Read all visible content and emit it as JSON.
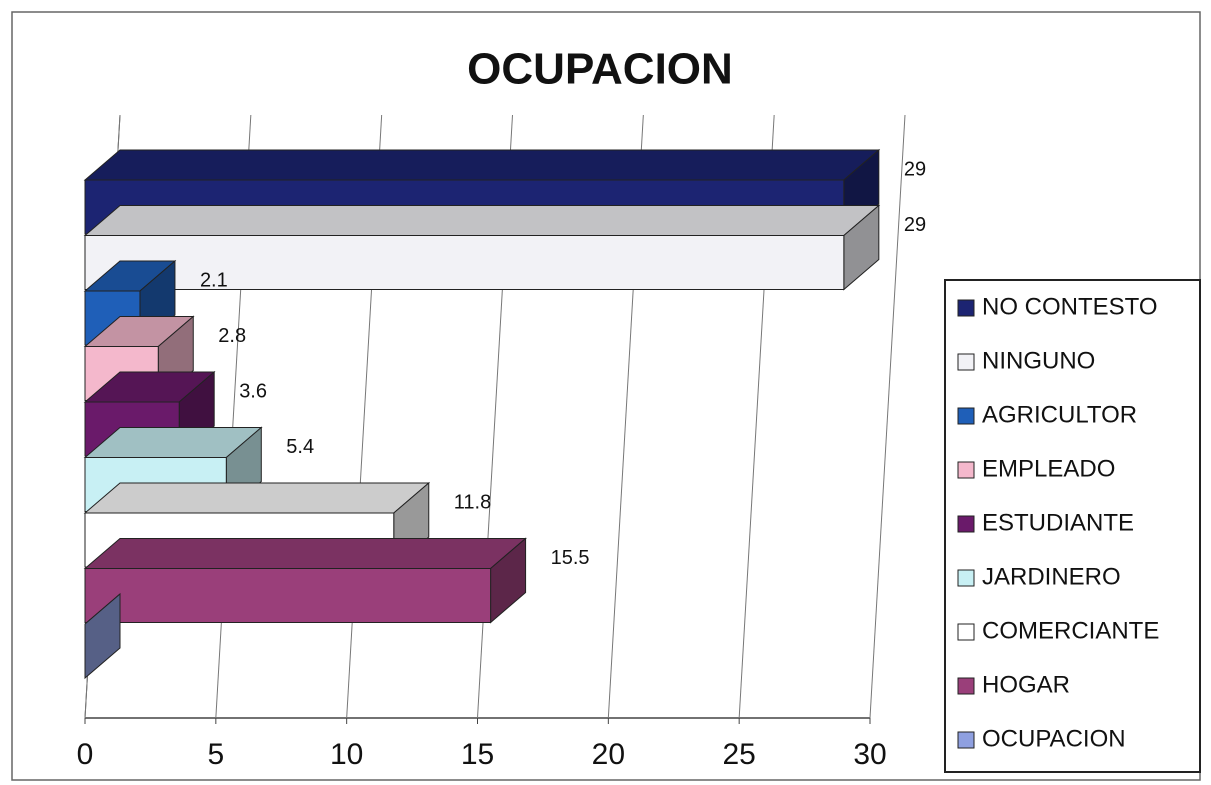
{
  "chart_data": {
    "type": "bar",
    "orientation": "horizontal",
    "title": "OCUPACION",
    "series": [
      {
        "name": "NO CONTESTO",
        "color": "#1c2472",
        "values": [
          29
        ]
      },
      {
        "name": "NINGUNO",
        "color": "#f2f2f6",
        "values": [
          29
        ]
      },
      {
        "name": "AGRICULTOR",
        "color": "#1f5fb8",
        "values": [
          2.1
        ]
      },
      {
        "name": "EMPLEADO",
        "color": "#f4b8cc",
        "values": [
          2.8
        ]
      },
      {
        "name": "ESTUDIANTE",
        "color": "#6a1a6a",
        "values": [
          3.6
        ]
      },
      {
        "name": "JARDINERO",
        "color": "#c8f0f4",
        "values": [
          5.4
        ]
      },
      {
        "name": "COMERCIANTE",
        "color": "#ffffff",
        "values": [
          11.8
        ]
      },
      {
        "name": "HOGAR",
        "color": "#9a3f7a",
        "values": [
          15.5
        ]
      },
      {
        "name": "OCUPACION",
        "color": "#8fa0e0",
        "values": [
          0
        ]
      }
    ],
    "xlim": [
      0,
      30
    ],
    "xticks": [
      0,
      5,
      10,
      15,
      20,
      25,
      30
    ],
    "grid": true,
    "legend": "right"
  }
}
